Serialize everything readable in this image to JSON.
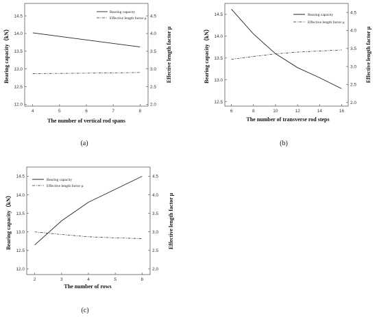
{
  "chart_data": [
    {
      "panel": "a",
      "caption": "(a)",
      "type": "line",
      "xlabel": "The number of vertical rod spans",
      "ylabel": "Bearing capacity（kN）",
      "y2label": "Effective length factor μ",
      "x_ticks": [
        "4",
        "5",
        "6",
        "7",
        "8"
      ],
      "y_ticks": [
        "12.0",
        "12.5",
        "13.0",
        "13.5",
        "14.0",
        "14.5"
      ],
      "y2_ticks": [
        "2.0",
        "2.5",
        "3.0",
        "3.5",
        "4.0",
        "4.5"
      ],
      "xlim": [
        3.7,
        8.3
      ],
      "ylim": [
        11.95,
        14.85
      ],
      "y2lim": [
        1.95,
        4.85
      ],
      "legend": [
        "Bearing capacity",
        "Effective length factor μ"
      ],
      "legend_position": "top-right",
      "series": [
        {
          "name": "Bearing capacity",
          "axis": "left",
          "style": "solid",
          "x": [
            4,
            6,
            8
          ],
          "values": [
            14.02,
            13.82,
            13.62
          ]
        },
        {
          "name": "Effective length factor μ",
          "axis": "right",
          "style": "dashdot",
          "x": [
            4,
            6,
            8
          ],
          "values": [
            2.87,
            2.88,
            2.9
          ]
        }
      ]
    },
    {
      "panel": "b",
      "caption": "(b)",
      "type": "line",
      "xlabel": "The number of transverse rod steps",
      "ylabel": "Bearing capacity（kN）",
      "y2label": "Effective length factor μ",
      "x_ticks": [
        "6",
        "8",
        "10",
        "12",
        "14",
        "16"
      ],
      "y_ticks": [
        "12.5",
        "13.0",
        "13.5",
        "14.0",
        "14.5"
      ],
      "y2_ticks": [
        "2.0",
        "2.5",
        "3.0",
        "3.5",
        "4.0",
        "4.5"
      ],
      "xlim": [
        5.4,
        16.6
      ],
      "ylim": [
        12.4,
        14.75
      ],
      "y2lim": [
        1.9,
        4.75
      ],
      "legend": [
        "Bearing capacity",
        "Effective length factor μ"
      ],
      "legend_position": "top-right",
      "series": [
        {
          "name": "Bearing capacity",
          "axis": "left",
          "style": "solid",
          "x": [
            6,
            8,
            10,
            12,
            14,
            16
          ],
          "values": [
            14.62,
            14.05,
            13.6,
            13.28,
            13.05,
            12.8
          ]
        },
        {
          "name": "Effective length factor μ",
          "axis": "right",
          "style": "dashdot",
          "x": [
            6,
            8,
            10,
            12,
            14,
            16
          ],
          "values": [
            3.2,
            3.28,
            3.35,
            3.4,
            3.43,
            3.46
          ]
        }
      ]
    },
    {
      "panel": "c",
      "caption": "(c)",
      "type": "line",
      "xlabel": "The number of rows",
      "ylabel": "Bearing capacity（kN）",
      "y2label": "Effective length factor μ",
      "x_ticks": [
        "2",
        "3",
        "4",
        "5",
        "6"
      ],
      "y_ticks": [
        "12.0",
        "12.5",
        "13.0",
        "13.5",
        "14.0",
        "14.5"
      ],
      "y2_ticks": [
        "2.0",
        "2.5",
        "3.0",
        "3.5",
        "4.0",
        "4.5"
      ],
      "xlim": [
        1.7,
        6.3
      ],
      "ylim": [
        11.85,
        14.75
      ],
      "y2lim": [
        1.85,
        4.75
      ],
      "legend": [
        "Bearing capacity",
        "Effective length factor μ"
      ],
      "legend_position": "top-left",
      "series": [
        {
          "name": "Bearing capacity",
          "axis": "left",
          "style": "solid",
          "x": [
            2,
            3,
            4,
            5,
            6
          ],
          "values": [
            12.65,
            13.3,
            13.8,
            14.15,
            14.5
          ]
        },
        {
          "name": "Effective length factor μ",
          "axis": "right",
          "style": "dashdot",
          "x": [
            2,
            3,
            4,
            5,
            6
          ],
          "values": [
            3.0,
            2.93,
            2.87,
            2.84,
            2.82
          ]
        }
      ]
    }
  ]
}
